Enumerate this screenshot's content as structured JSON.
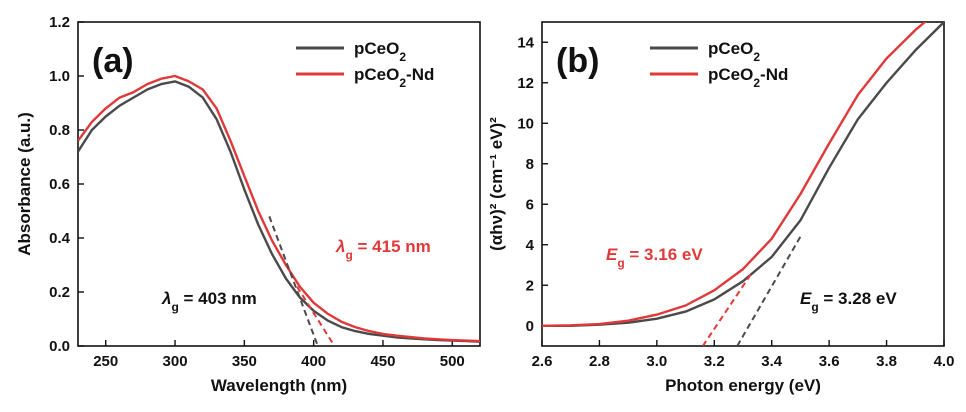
{
  "chart_data": [
    {
      "panel": "(a)",
      "type": "line",
      "xlabel": "Wavelength (nm)",
      "ylabel": "Absorbance (a.u.)",
      "xlim": [
        230,
        520
      ],
      "ylim": [
        0.0,
        1.2
      ],
      "xticks": [
        250,
        300,
        350,
        400,
        450,
        500
      ],
      "yticks": [
        0.0,
        0.2,
        0.4,
        0.6,
        0.8,
        1.0,
        1.2
      ],
      "xtick_labels": [
        "250",
        "300",
        "350",
        "400",
        "450",
        "500"
      ],
      "ytick_labels": [
        "0.0",
        "0.2",
        "0.4",
        "0.6",
        "0.8",
        "1.0",
        "1.2"
      ],
      "legend": {
        "placement": "top-right",
        "entries": [
          "pCeO2",
          "pCeO2-Nd"
        ]
      },
      "series": [
        {
          "name": "pCeO2",
          "color": "#4a4a4a",
          "x": [
            230,
            240,
            250,
            260,
            270,
            280,
            290,
            300,
            310,
            320,
            330,
            340,
            350,
            360,
            370,
            380,
            390,
            400,
            410,
            420,
            430,
            440,
            450,
            460,
            470,
            480,
            490,
            500,
            510,
            520
          ],
          "y": [
            0.72,
            0.8,
            0.85,
            0.89,
            0.92,
            0.95,
            0.97,
            0.98,
            0.96,
            0.92,
            0.84,
            0.72,
            0.58,
            0.45,
            0.34,
            0.25,
            0.18,
            0.13,
            0.095,
            0.07,
            0.055,
            0.045,
            0.038,
            0.032,
            0.028,
            0.025,
            0.022,
            0.02,
            0.018,
            0.016
          ]
        },
        {
          "name": "pCeO2-Nd",
          "color": "#e0393a",
          "x": [
            230,
            240,
            250,
            260,
            270,
            280,
            290,
            300,
            310,
            320,
            330,
            340,
            350,
            360,
            370,
            380,
            390,
            400,
            410,
            420,
            430,
            440,
            450,
            460,
            470,
            480,
            490,
            500,
            510,
            520
          ],
          "y": [
            0.76,
            0.83,
            0.88,
            0.92,
            0.94,
            0.97,
            0.99,
            1.0,
            0.98,
            0.95,
            0.88,
            0.76,
            0.63,
            0.5,
            0.39,
            0.3,
            0.22,
            0.16,
            0.12,
            0.09,
            0.07,
            0.055,
            0.045,
            0.038,
            0.033,
            0.028,
            0.025,
            0.022,
            0.02,
            0.018
          ]
        }
      ],
      "tangents": [
        {
          "color": "#4a4a4a",
          "from": [
            368,
            0.48
          ],
          "to": [
            403,
            0.0
          ]
        },
        {
          "color": "#e0393a",
          "from": [
            388,
            0.22
          ],
          "to": [
            415,
            0.0
          ]
        }
      ],
      "annotations": [
        {
          "symbol": "λ",
          "sub": "g",
          "text": "= 403 nm",
          "color": "#111111"
        },
        {
          "symbol": "λ",
          "sub": "g",
          "text": "= 415 nm",
          "color": "#e0393a"
        }
      ]
    },
    {
      "panel": "(b)",
      "type": "line",
      "xlabel": "Photon energy (eV)",
      "ylabel": "(αhν)² (cm⁻¹ eV)²",
      "xlim": [
        2.6,
        4.0
      ],
      "ylim": [
        -1.0,
        15.0
      ],
      "xticks": [
        2.6,
        2.8,
        3.0,
        3.2,
        3.4,
        3.6,
        3.8,
        4.0
      ],
      "yticks": [
        0,
        2,
        4,
        6,
        8,
        10,
        12,
        14
      ],
      "xtick_labels": [
        "2.6",
        "2.8",
        "3.0",
        "3.2",
        "3.4",
        "3.6",
        "3.8",
        "4.0"
      ],
      "ytick_labels": [
        "0",
        "2",
        "4",
        "6",
        "8",
        "10",
        "12",
        "14"
      ],
      "legend": {
        "placement": "top-left",
        "entries": [
          "pCeO2",
          "pCeO2-Nd"
        ]
      },
      "series": [
        {
          "name": "pCeO2",
          "color": "#4a4a4a",
          "x": [
            2.6,
            2.7,
            2.8,
            2.9,
            3.0,
            3.1,
            3.2,
            3.3,
            3.4,
            3.5,
            3.6,
            3.7,
            3.8,
            3.9,
            4.0
          ],
          "y": [
            0.0,
            0.0,
            0.05,
            0.15,
            0.35,
            0.7,
            1.3,
            2.2,
            3.4,
            5.2,
            7.8,
            10.2,
            12.0,
            13.6,
            15.0
          ]
        },
        {
          "name": "pCeO2-Nd",
          "color": "#e0393a",
          "x": [
            2.6,
            2.7,
            2.8,
            2.9,
            3.0,
            3.1,
            3.2,
            3.3,
            3.4,
            3.5,
            3.6,
            3.7,
            3.8,
            3.9,
            4.0
          ],
          "y": [
            0.0,
            0.02,
            0.08,
            0.25,
            0.55,
            1.0,
            1.75,
            2.8,
            4.3,
            6.5,
            9.0,
            11.4,
            13.2,
            14.6,
            15.8
          ]
        }
      ],
      "tangents": [
        {
          "color": "#4a4a4a",
          "from": [
            3.28,
            -1.0
          ],
          "to": [
            3.5,
            4.4
          ]
        },
        {
          "color": "#e0393a",
          "from": [
            3.16,
            -1.0
          ],
          "to": [
            3.33,
            2.6
          ]
        }
      ],
      "annotations": [
        {
          "symbol": "E",
          "sub": "g",
          "text": "= 3.16 eV",
          "color": "#e0393a"
        },
        {
          "symbol": "E",
          "sub": "g",
          "text": "= 3.28 eV",
          "color": "#111111"
        }
      ]
    }
  ]
}
